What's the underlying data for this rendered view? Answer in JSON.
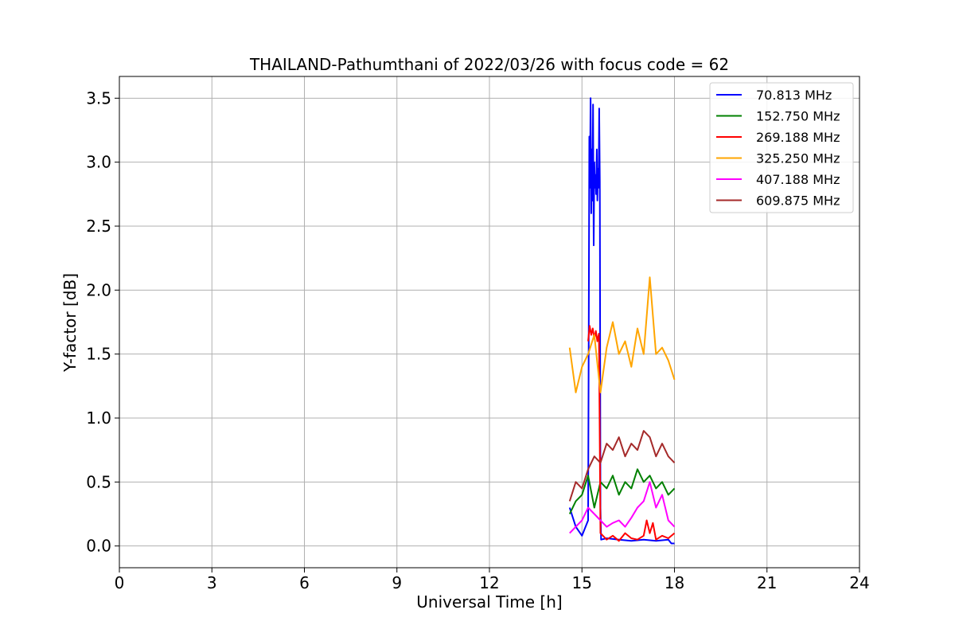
{
  "chart_data": {
    "type": "line",
    "title": "THAILAND-Pathumthani of 2022/03/26 with focus code = 62",
    "xlabel": "Universal Time [h]",
    "ylabel": "Y-factor [dB]",
    "xlim": [
      0,
      24
    ],
    "ylim": [
      -0.17,
      3.67
    ],
    "xticks": [
      0,
      3,
      6,
      9,
      12,
      15,
      18,
      21,
      24
    ],
    "xtick_labels": [
      "0",
      "3",
      "6",
      "9",
      "12",
      "15",
      "18",
      "21",
      "24"
    ],
    "yticks": [
      0.0,
      0.5,
      1.0,
      1.5,
      2.0,
      2.5,
      3.0,
      3.5
    ],
    "ytick_labels": [
      "0.0",
      "0.5",
      "1.0",
      "1.5",
      "2.0",
      "2.5",
      "3.0",
      "3.5"
    ],
    "grid": true,
    "legend_position": "top-right",
    "series": [
      {
        "name": " 70.813 MHz",
        "color": "#0000ff",
        "x": [
          14.6,
          14.8,
          15.0,
          15.2,
          15.22,
          15.24,
          15.26,
          15.28,
          15.3,
          15.32,
          15.34,
          15.36,
          15.38,
          15.4,
          15.42,
          15.44,
          15.46,
          15.48,
          15.5,
          15.52,
          15.54,
          15.56,
          15.58,
          15.6,
          15.62,
          15.8,
          16.2,
          16.6,
          17.0,
          17.4,
          17.8,
          17.9,
          18.0
        ],
        "y": [
          0.3,
          0.15,
          0.08,
          0.2,
          1.7,
          3.2,
          2.8,
          3.5,
          2.6,
          3.1,
          2.7,
          3.45,
          2.35,
          3.0,
          2.8,
          2.9,
          2.75,
          3.1,
          2.7,
          2.95,
          2.8,
          3.42,
          2.85,
          0.3,
          0.05,
          0.06,
          0.05,
          0.04,
          0.05,
          0.04,
          0.05,
          0.02,
          0.02
        ]
      },
      {
        "name": "152.750 MHz",
        "color": "#008000",
        "x": [
          14.6,
          14.8,
          15.0,
          15.2,
          15.4,
          15.6,
          15.8,
          16.0,
          16.2,
          16.4,
          16.6,
          16.8,
          17.0,
          17.2,
          17.4,
          17.6,
          17.8,
          18.0
        ],
        "y": [
          0.25,
          0.35,
          0.4,
          0.55,
          0.3,
          0.5,
          0.45,
          0.55,
          0.4,
          0.5,
          0.45,
          0.6,
          0.5,
          0.55,
          0.45,
          0.5,
          0.4,
          0.45
        ]
      },
      {
        "name": "269.188 MHz",
        "color": "#ff0000",
        "x": [
          15.2,
          15.25,
          15.3,
          15.35,
          15.4,
          15.45,
          15.5,
          15.55,
          15.6,
          15.8,
          16.0,
          16.2,
          16.4,
          16.6,
          16.8,
          17.0,
          17.1,
          17.2,
          17.3,
          17.4,
          17.6,
          17.8,
          18.0
        ],
        "y": [
          1.6,
          1.72,
          1.65,
          1.7,
          1.62,
          1.68,
          1.6,
          1.66,
          0.1,
          0.05,
          0.08,
          0.04,
          0.1,
          0.06,
          0.05,
          0.08,
          0.2,
          0.1,
          0.18,
          0.05,
          0.08,
          0.06,
          0.1
        ]
      },
      {
        "name": "325.250 MHz",
        "color": "#ffa500",
        "x": [
          14.6,
          14.8,
          15.0,
          15.2,
          15.4,
          15.6,
          15.8,
          16.0,
          16.2,
          16.4,
          16.6,
          16.8,
          17.0,
          17.2,
          17.4,
          17.6,
          17.8,
          18.0
        ],
        "y": [
          1.55,
          1.2,
          1.4,
          1.5,
          1.65,
          1.2,
          1.55,
          1.75,
          1.5,
          1.6,
          1.4,
          1.7,
          1.5,
          2.1,
          1.5,
          1.55,
          1.45,
          1.3
        ]
      },
      {
        "name": "407.188 MHz",
        "color": "#ff00ff",
        "x": [
          14.6,
          14.8,
          15.0,
          15.2,
          15.4,
          15.6,
          15.8,
          16.0,
          16.2,
          16.4,
          16.6,
          16.8,
          17.0,
          17.2,
          17.4,
          17.6,
          17.8,
          18.0
        ],
        "y": [
          0.1,
          0.15,
          0.2,
          0.3,
          0.25,
          0.2,
          0.15,
          0.18,
          0.2,
          0.15,
          0.22,
          0.3,
          0.35,
          0.5,
          0.3,
          0.4,
          0.2,
          0.15
        ]
      },
      {
        "name": "609.875 MHz",
        "color": "#a52a2a",
        "x": [
          14.6,
          14.8,
          15.0,
          15.2,
          15.4,
          15.6,
          15.8,
          16.0,
          16.2,
          16.4,
          16.6,
          16.8,
          17.0,
          17.2,
          17.4,
          17.6,
          17.8,
          18.0
        ],
        "y": [
          0.35,
          0.5,
          0.45,
          0.6,
          0.7,
          0.65,
          0.8,
          0.75,
          0.85,
          0.7,
          0.8,
          0.75,
          0.9,
          0.85,
          0.7,
          0.8,
          0.7,
          0.65
        ]
      }
    ]
  }
}
